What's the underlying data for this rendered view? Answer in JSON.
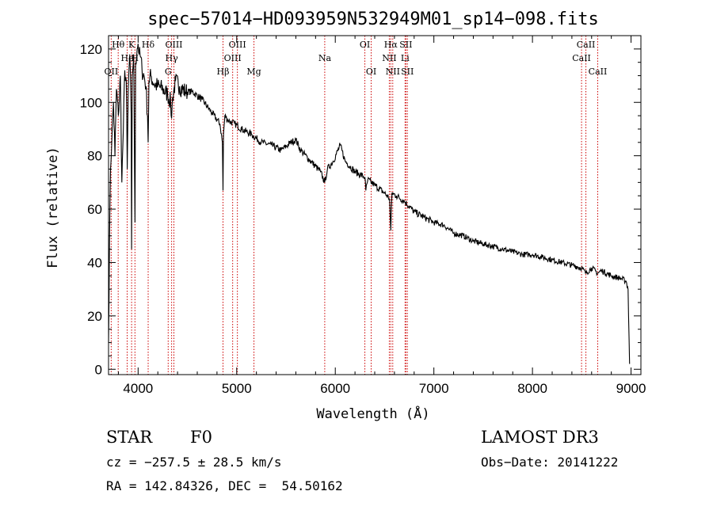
{
  "chart_data": {
    "type": "line",
    "title": "spec−57014−HD093959N532949M01_sp14−098.fits",
    "xlabel": "Wavelength (Å)",
    "ylabel": "Flux (relative)",
    "xlim": [
      3700,
      9100
    ],
    "ylim": [
      -2,
      125
    ],
    "x_ticks": [
      4000,
      5000,
      6000,
      7000,
      8000,
      9000
    ],
    "y_ticks": [
      0,
      20,
      40,
      60,
      80,
      100,
      120
    ],
    "series": [
      {
        "name": "flux",
        "x": [
          3700,
          3710,
          3720,
          3735,
          3750,
          3765,
          3780,
          3800,
          3820,
          3835,
          3850,
          3865,
          3880,
          3890,
          3900,
          3915,
          3930,
          3934,
          3940,
          3955,
          3968,
          3975,
          3990,
          4000,
          4010,
          4025,
          4040,
          4060,
          4080,
          4095,
          4102,
          4110,
          4130,
          4160,
          4200,
          4250,
          4300,
          4330,
          4340,
          4350,
          4380,
          4420,
          4480,
          4550,
          4650,
          4750,
          4830,
          4855,
          4861,
          4866,
          4880,
          4920,
          4980,
          5050,
          5150,
          5250,
          5350,
          5450,
          5550,
          5600,
          5650,
          5750,
          5850,
          5893,
          5920,
          5980,
          6050,
          6100,
          6200,
          6300,
          6310,
          6330,
          6400,
          6500,
          6550,
          6563,
          6575,
          6620,
          6700,
          6800,
          6900,
          7000,
          7100,
          7200,
          7300,
          7400,
          7500,
          7600,
          7700,
          7800,
          7900,
          8000,
          8100,
          8200,
          8300,
          8400,
          8498,
          8542,
          8600,
          8662,
          8700,
          8800,
          8900,
          8950,
          8970,
          8985
        ],
        "y": [
          10,
          48,
          75,
          88,
          100,
          80,
          105,
          95,
          110,
          70,
          90,
          112,
          108,
          75,
          105,
          118,
          95,
          45,
          110,
          118,
          55,
          115,
          120,
          122,
          118,
          117,
          112,
          110,
          106,
          95,
          85,
          108,
          110,
          107,
          106,
          105,
          103,
          100,
          94,
          102,
          108,
          106,
          104,
          104,
          101,
          96,
          92,
          85,
          67,
          88,
          95,
          93,
          92,
          90,
          88,
          85,
          84,
          82,
          85,
          86,
          82,
          78,
          74,
          70,
          75,
          78,
          84,
          78,
          74,
          72,
          67,
          71,
          69,
          66,
          64,
          52,
          66,
          65,
          63,
          59,
          57,
          55,
          54,
          51,
          50,
          48,
          47,
          46,
          45,
          44,
          43,
          43,
          42,
          41,
          40,
          39,
          38,
          36,
          38,
          36,
          37,
          35,
          34,
          33,
          30,
          2
        ]
      }
    ],
    "lines": [
      {
        "name": "OII",
        "x": 3727,
        "row": 3
      },
      {
        "name": "Hθ",
        "x": 3798,
        "row": 1
      },
      {
        "name": "He",
        "x": 3889,
        "row": 2
      },
      {
        "name": "K",
        "x": 3934,
        "row": 1
      },
      {
        "name": "H",
        "x": 3968,
        "row": 2
      },
      {
        "name": "Hδ",
        "x": 4102,
        "row": 1
      },
      {
        "name": "G",
        "x": 4305,
        "row": 3
      },
      {
        "name": "Hγ",
        "x": 4340,
        "row": 2
      },
      {
        "name": "OIII",
        "x": 4363,
        "row": 1
      },
      {
        "name": "Hβ",
        "x": 4861,
        "row": 3
      },
      {
        "name": "OIII",
        "x": 4959,
        "row": 2
      },
      {
        "name": "OIII",
        "x": 5007,
        "row": 1
      },
      {
        "name": "Mg",
        "x": 5175,
        "row": 3
      },
      {
        "name": "Na",
        "x": 5893,
        "row": 2
      },
      {
        "name": "OI",
        "x": 6300,
        "row": 1
      },
      {
        "name": "OI",
        "x": 6364,
        "row": 3
      },
      {
        "name": "NII",
        "x": 6548,
        "row": 2
      },
      {
        "name": "Hα",
        "x": 6563,
        "row": 1
      },
      {
        "name": "NII",
        "x": 6583,
        "row": 3
      },
      {
        "name": "Li",
        "x": 6708,
        "row": 2
      },
      {
        "name": "SII",
        "x": 6716,
        "row": 1
      },
      {
        "name": "SII",
        "x": 6731,
        "row": 3
      },
      {
        "name": "CaII",
        "x": 8498,
        "row": 2
      },
      {
        "name": "CaII",
        "x": 8542,
        "row": 1
      },
      {
        "name": "CaII",
        "x": 8662,
        "row": 3
      }
    ]
  },
  "info": {
    "object_class": "STAR",
    "subclass": "F0",
    "survey": "LAMOST DR3",
    "cz": "cz = −257.5 ± 28.5 km/s",
    "obs_date": "Obs−Date: 20141222",
    "coords": "RA = 142.84326, DEC =  54.50162"
  },
  "colors": {
    "spectrum": "#000000",
    "line_marker": "#cc0000",
    "axis": "#000000"
  }
}
